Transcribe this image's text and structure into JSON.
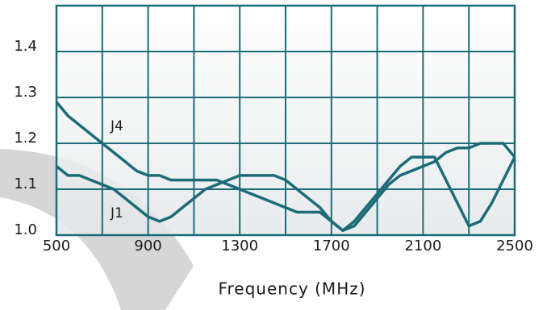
{
  "chart_data": {
    "type": "line",
    "xlabel": "Frequency (MHz)",
    "xlim": [
      500,
      2500
    ],
    "ylim": [
      1.0,
      1.5
    ],
    "xticks": [
      500,
      900,
      1300,
      1700,
      2100,
      2500
    ],
    "xminor": [
      700,
      1100,
      1500,
      1900,
      2300
    ],
    "yticks": [
      {
        "value": 1.0,
        "label": "1.0"
      },
      1.1,
      1.2,
      1.3,
      1.4,
      1.5
    ],
    "grid": true,
    "grid_color": "#1c6b78",
    "x": [
      500,
      550,
      600,
      650,
      700,
      750,
      800,
      850,
      900,
      950,
      1000,
      1050,
      1100,
      1150,
      1200,
      1250,
      1300,
      1350,
      1400,
      1450,
      1500,
      1550,
      1600,
      1650,
      1700,
      1750,
      1800,
      1850,
      1900,
      1950,
      2000,
      2050,
      2100,
      2150,
      2200,
      2250,
      2300,
      2350,
      2400,
      2450,
      2500
    ],
    "series": [
      {
        "name": "J4",
        "color": "#1c6b78",
        "values": [
          1.29,
          1.26,
          1.24,
          1.22,
          1.2,
          1.18,
          1.16,
          1.14,
          1.13,
          1.13,
          1.12,
          1.12,
          1.12,
          1.12,
          1.12,
          1.11,
          1.1,
          1.09,
          1.08,
          1.07,
          1.06,
          1.05,
          1.05,
          1.05,
          1.03,
          1.01,
          1.03,
          1.06,
          1.09,
          1.12,
          1.15,
          1.17,
          1.17,
          1.17,
          1.12,
          1.07,
          1.02,
          1.03,
          1.07,
          1.12,
          1.17
        ]
      },
      {
        "name": "J1",
        "color": "#1c6b78",
        "values": [
          1.15,
          1.13,
          1.13,
          1.12,
          1.11,
          1.1,
          1.08,
          1.06,
          1.04,
          1.03,
          1.04,
          1.06,
          1.08,
          1.1,
          1.11,
          1.12,
          1.13,
          1.13,
          1.13,
          1.13,
          1.12,
          1.1,
          1.08,
          1.06,
          1.03,
          1.01,
          1.02,
          1.05,
          1.08,
          1.11,
          1.13,
          1.14,
          1.15,
          1.16,
          1.18,
          1.19,
          1.19,
          1.2,
          1.2,
          1.2,
          1.17
        ]
      }
    ]
  }
}
